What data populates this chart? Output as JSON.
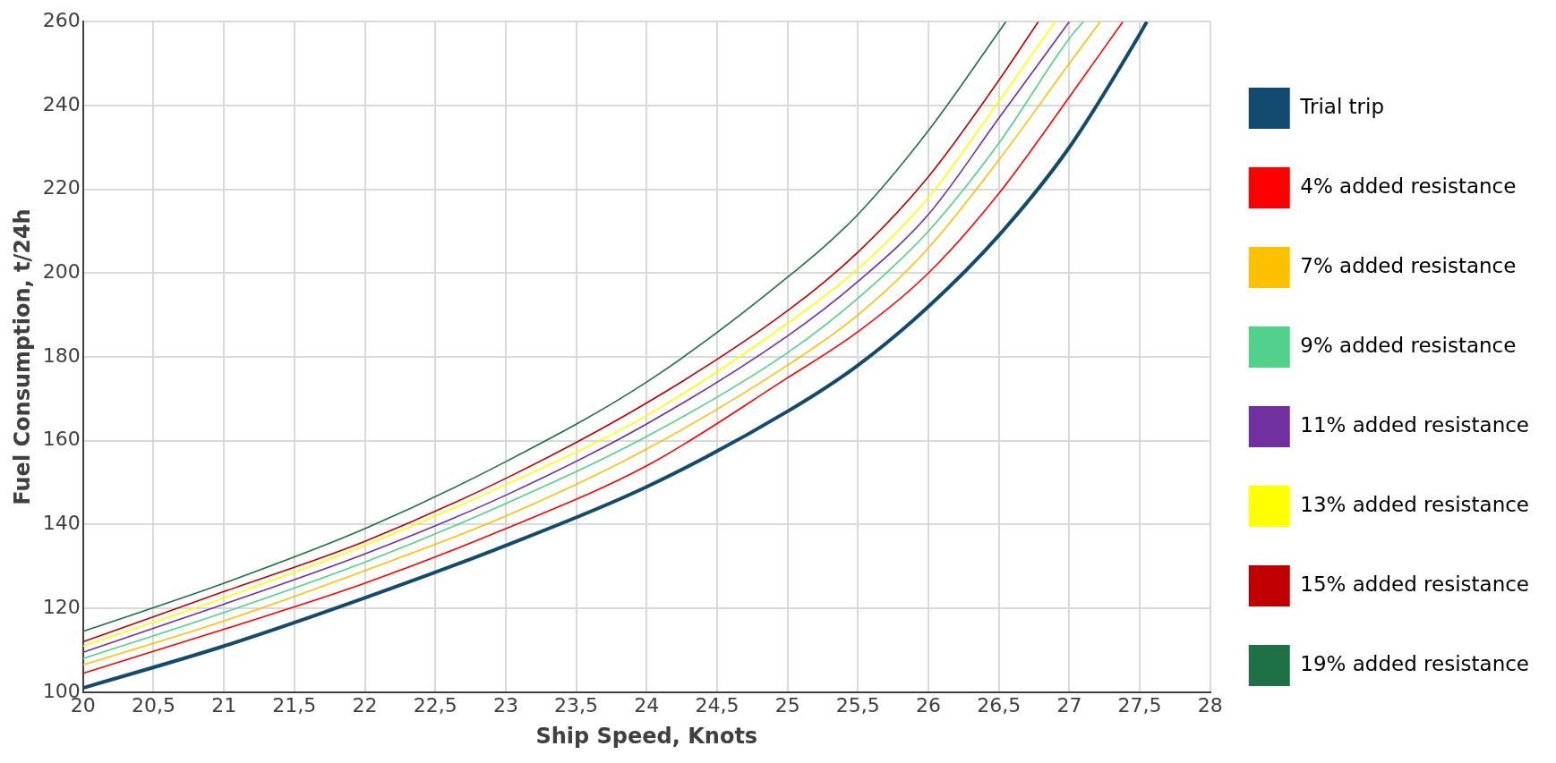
{
  "chart_data": {
    "type": "line",
    "xlabel": "Ship Speed, Knots",
    "ylabel": "Fuel Consumption, t/24h",
    "xlim": [
      20,
      28
    ],
    "xticks": [
      {
        "value": 20,
        "label": "20"
      },
      {
        "value": 20.5,
        "label": "20,5"
      },
      {
        "value": 21,
        "label": "21"
      },
      {
        "value": 21.5,
        "label": "21,5"
      },
      {
        "value": 22,
        "label": "22"
      },
      {
        "value": 22.5,
        "label": "22,5"
      },
      {
        "value": 23,
        "label": "23"
      },
      {
        "value": 23.5,
        "label": "23,5"
      },
      {
        "value": 24,
        "label": "24"
      },
      {
        "value": 24.5,
        "label": "24,5"
      },
      {
        "value": 25,
        "label": "25"
      },
      {
        "value": 25.5,
        "label": "25,5"
      },
      {
        "value": 26,
        "label": "26"
      },
      {
        "value": 26.5,
        "label": "26,5"
      },
      {
        "value": 27,
        "label": "27"
      },
      {
        "value": 27.5,
        "label": "27,5"
      },
      {
        "value": 28,
        "label": "28"
      }
    ],
    "ylim": [
      100,
      260
    ],
    "yticks": [
      100,
      120,
      140,
      160,
      180,
      200,
      220,
      240,
      260
    ],
    "grid": true,
    "legend": "right",
    "marker": "none",
    "line_style": "solid",
    "series": [
      {
        "name": "Trial trip",
        "color": "#124a70",
        "x": [
          20,
          21,
          22,
          23,
          24,
          25,
          25.5,
          26,
          26.5,
          27,
          27.5,
          27.55
        ],
        "values": [
          101,
          111,
          122.5,
          135,
          149,
          167,
          178,
          192,
          209,
          230,
          257,
          260
        ]
      },
      {
        "name": "4% added resistance",
        "color": "#ff0000",
        "x": [
          20,
          21,
          22,
          23,
          24,
          25,
          25.5,
          26,
          26.5,
          27,
          27.38
        ],
        "values": [
          104.5,
          115,
          126,
          139,
          154,
          175,
          186,
          200,
          219,
          242,
          260
        ]
      },
      {
        "name": "7% added resistance",
        "color": "#ffc000",
        "x": [
          20,
          21,
          22,
          23,
          24,
          25,
          25.5,
          26,
          26.5,
          27,
          27.22
        ],
        "values": [
          106.5,
          117,
          129,
          142,
          158,
          178,
          190,
          206,
          227,
          250,
          260
        ]
      },
      {
        "name": "9% added resistance",
        "color": "#50d28a",
        "x": [
          20,
          21,
          22,
          23,
          24,
          25,
          25.5,
          26,
          26.5,
          27,
          27.1
        ],
        "values": [
          108,
          119,
          131,
          145,
          161,
          181,
          194,
          210,
          231,
          256,
          260
        ]
      },
      {
        "name": "11% added resistance",
        "color": "#7030a0",
        "x": [
          20,
          21,
          22,
          23,
          24,
          25,
          25.5,
          26,
          26.5,
          27
        ],
        "values": [
          109.5,
          121,
          133,
          147,
          164,
          185,
          198,
          214,
          237,
          260
        ]
      },
      {
        "name": "13% added resistance",
        "color": "#ffff00",
        "x": [
          20,
          21,
          22,
          23,
          24,
          25,
          25.5,
          26,
          26.5,
          26.9
        ],
        "values": [
          111,
          122.5,
          135,
          149.5,
          166,
          188,
          201,
          218,
          241,
          260
        ]
      },
      {
        "name": "15% added resistance",
        "color": "#c00000",
        "x": [
          20,
          21,
          22,
          23,
          24,
          25,
          25.5,
          26,
          26.5,
          26.78
        ],
        "values": [
          112,
          124,
          136,
          151,
          169,
          191,
          205,
          223,
          246,
          260
        ]
      },
      {
        "name": "19% added resistance",
        "color": "#1e7145",
        "x": [
          20,
          21,
          22,
          23,
          24,
          25,
          25.5,
          26,
          26.55
        ],
        "values": [
          114.5,
          126,
          139,
          155,
          174,
          199,
          214,
          234,
          260
        ]
      }
    ]
  }
}
